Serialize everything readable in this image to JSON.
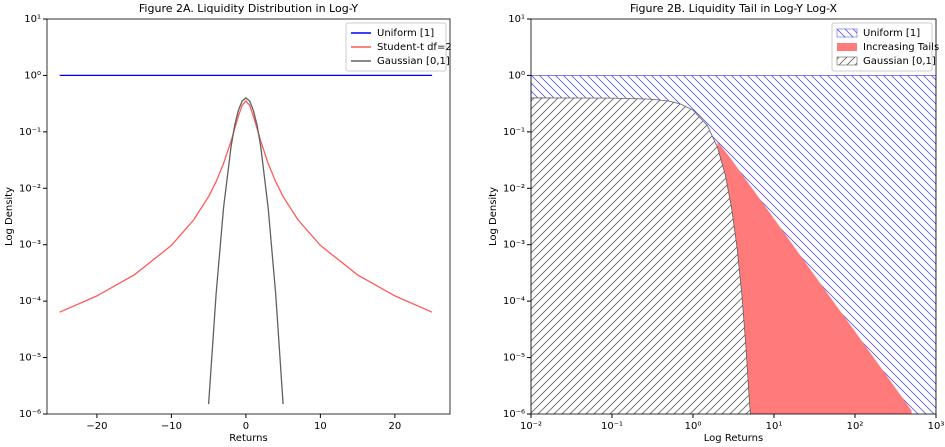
{
  "chart_data": [
    {
      "type": "line",
      "title": "Figure 2A. Liquidity Distribution in Log-Y",
      "xlabel": "Returns",
      "ylabel": "Log Density",
      "ylog": true,
      "legend": "upper right",
      "x": [
        -25,
        -20,
        -15,
        -10,
        -7,
        -5,
        -4,
        -3,
        -2,
        -1.5,
        -1,
        -0.5,
        0,
        0.5,
        1,
        1.5,
        2,
        3,
        4,
        5,
        7,
        10,
        15,
        20,
        25
      ],
      "series": [
        {
          "name": "Uniform [1]",
          "color": "#0000ff",
          "values": [
            1,
            1,
            1,
            1,
            1,
            1,
            1,
            1,
            1,
            1,
            1,
            1,
            1,
            1,
            1,
            1,
            1,
            1,
            1,
            1,
            1,
            1,
            1,
            1,
            1
          ]
        },
        {
          "name": "Student-t df=2",
          "color": "#ff5a5a",
          "values": [
            6.37e-05,
            0.000124,
            0.000292,
            0.000971,
            0.00275,
            0.00713,
            0.0131,
            0.0274,
            0.068,
            0.114,
            0.192,
            0.296,
            0.354,
            0.296,
            0.192,
            0.114,
            0.068,
            0.0274,
            0.0131,
            0.00713,
            0.00275,
            0.000971,
            0.000292,
            0.000124,
            6.37e-05
          ]
        },
        {
          "name": "Gaussian [0,1]",
          "color": "#606060",
          "values": [
            null,
            null,
            null,
            null,
            null,
            1.5e-06,
            0.000134,
            0.00443,
            0.054,
            0.13,
            0.242,
            0.352,
            0.399,
            0.352,
            0.242,
            0.13,
            0.054,
            0.00443,
            0.000134,
            1.5e-06,
            null,
            null,
            null,
            null,
            null
          ]
        }
      ],
      "xlim": [
        -26.7,
        27.4
      ],
      "xticks": [
        {
          "value": -20,
          "label": "−20"
        },
        {
          "value": -10,
          "label": "−10"
        },
        0,
        10,
        20
      ],
      "ylim": [
        1e-06,
        10
      ],
      "yticks": [
        {
          "value": 1e-06,
          "label": "10⁻⁶"
        },
        {
          "value": 1e-05,
          "label": "10⁻⁵"
        },
        {
          "value": 0.0001,
          "label": "10⁻⁴"
        },
        {
          "value": 0.001,
          "label": "10⁻³"
        },
        {
          "value": 0.01,
          "label": "10⁻²"
        },
        {
          "value": 0.1,
          "label": "10⁻¹"
        },
        {
          "value": 1,
          "label": "10⁰"
        },
        {
          "value": 10,
          "label": "10¹"
        }
      ]
    },
    {
      "type": "area",
      "title": "Figure 2B. Liquidity Tail in Log-Y Log-X",
      "xlabel": "Log Returns",
      "ylabel": "Log Density",
      "xlog": true,
      "ylog": true,
      "legend": "upper right",
      "series": [
        {
          "name": "Uniform [1]",
          "color": "#5a5ae6",
          "hatch": "\\\\",
          "x": [
            0.01,
            1000
          ],
          "values": [
            1,
            1
          ]
        },
        {
          "name": "Increasing Tails",
          "color": "#ff7b7b",
          "x": [
            2,
            3,
            5,
            10,
            20,
            50,
            100,
            200,
            500
          ],
          "values": [
            0.068,
            0.032,
            0.0115,
            0.0029,
            0.00072,
            0.000115,
            2.9e-05,
            7.2e-06,
            1.15e-06
          ]
        },
        {
          "name": "Gaussian [0,1]",
          "color": "#606060",
          "hatch": "//",
          "x": [
            0.01,
            0.1,
            0.3,
            0.5,
            0.7,
            1,
            1.5,
            2,
            2.5,
            3,
            3.5,
            4,
            4.5,
            5,
            5.3
          ],
          "values": [
            0.399,
            0.397,
            0.381,
            0.352,
            0.312,
            0.242,
            0.13,
            0.054,
            0.0175,
            0.00443,
            0.00087,
            0.000134,
            1.6e-05,
            1.5e-06,
            5.9e-07
          ]
        }
      ],
      "xlim": [
        0.01,
        1000
      ],
      "xticks": [
        {
          "value": 0.01,
          "label": "10⁻²"
        },
        {
          "value": 0.1,
          "label": "10⁻¹"
        },
        {
          "value": 1,
          "label": "10⁰"
        },
        {
          "value": 10,
          "label": "10¹"
        },
        {
          "value": 100,
          "label": "10²"
        },
        {
          "value": 1000,
          "label": "10³"
        }
      ],
      "ylim": [
        1e-06,
        10
      ],
      "yticks": [
        {
          "value": 1e-06,
          "label": "10⁻⁶"
        },
        {
          "value": 1e-05,
          "label": "10⁻⁵"
        },
        {
          "value": 0.0001,
          "label": "10⁻⁴"
        },
        {
          "value": 0.001,
          "label": "10⁻³"
        },
        {
          "value": 0.01,
          "label": "10⁻²"
        },
        {
          "value": 0.1,
          "label": "10⁻¹"
        },
        {
          "value": 1,
          "label": "10⁰"
        },
        {
          "value": 10,
          "label": "10¹"
        }
      ]
    }
  ]
}
